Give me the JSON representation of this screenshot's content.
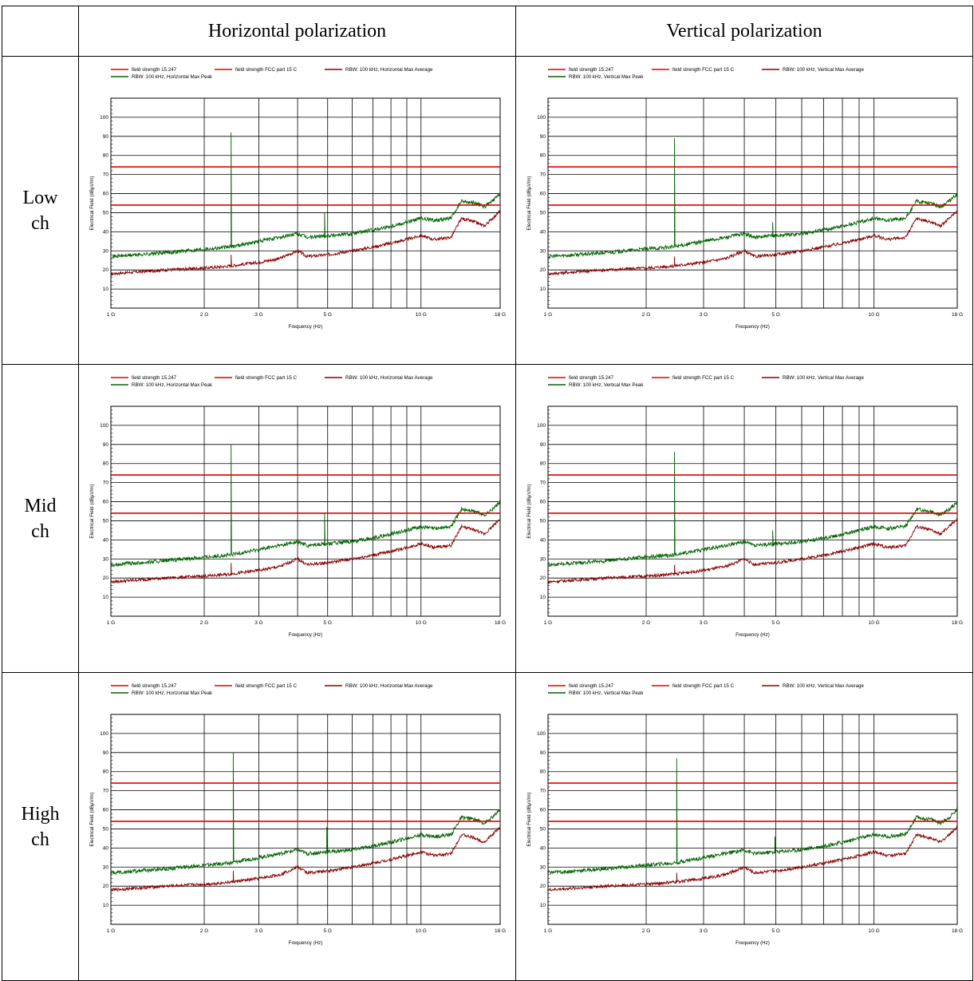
{
  "header": {
    "col1": "Horizontal polarization",
    "col2": "Vertical polarization"
  },
  "rows": [
    {
      "label_line1": "Low",
      "label_line2": "ch"
    },
    {
      "label_line1": "Mid",
      "label_line2": "ch"
    },
    {
      "label_line1": "High",
      "label_line2": "ch"
    }
  ],
  "legend": {
    "limit_1": "field strength 15.247",
    "limit_2": "field strength FCC part 15 C",
    "h_avg": "RBW: 100 kHz, Horizontal Max Average",
    "h_peak": "RBW: 100 kHz, Horizontal Max Peak",
    "v_avg": "RBW: 100 kHz, Vertical Max Average",
    "v_peak": "RBW: 100 kHz, Vertical Max Peak"
  },
  "colors": {
    "limit": "#e00000",
    "average": "#8b0000",
    "peak": "#006400"
  },
  "chart_data": [
    {
      "type": "line",
      "row": "Low ch",
      "polarization": "Horizontal",
      "xlabel": "Frequency (Hz)",
      "ylabel": "Electrical Field (dBµV/m)",
      "x_scale": "log",
      "xlim": [
        1000000000.0,
        18000000000.0
      ],
      "ylim": [
        0,
        110
      ],
      "x_ticks": [
        "1 G",
        "2 G",
        "3 G",
        "5 G",
        "10 G",
        "18 G"
      ],
      "y_ticks": [
        10,
        20,
        30,
        40,
        50,
        60,
        70,
        80,
        90,
        100
      ],
      "series": [
        {
          "name": "field strength 15.247",
          "kind": "limit",
          "x": [
            1000000000.0,
            18000000000.0
          ],
          "y": [
            74,
            74
          ]
        },
        {
          "name": "field strength FCC part 15 C",
          "kind": "limit",
          "x": [
            1000000000.0,
            18000000000.0
          ],
          "y": [
            54,
            54
          ]
        },
        {
          "name": "RBW: 100 kHz, Horizontal Max Average",
          "kind": "average",
          "spike_x": 2440000000.0,
          "spike_y": 28
        },
        {
          "name": "RBW: 100 kHz, Horizontal Max Peak",
          "kind": "peak",
          "spike_x": 2440000000.0,
          "spike_y": 92,
          "harmonic_x": 4880000000.0,
          "harmonic_y": 50
        }
      ]
    },
    {
      "type": "line",
      "row": "Low ch",
      "polarization": "Vertical",
      "xlabel": "Frequency (Hz)",
      "ylabel": "Electrical Field (dBµV/m)",
      "x_scale": "log",
      "xlim": [
        1000000000.0,
        18000000000.0
      ],
      "ylim": [
        0,
        110
      ],
      "x_ticks": [
        "1 G",
        "2 G",
        "3 G",
        "5 G",
        "10 G",
        "18 G"
      ],
      "y_ticks": [
        10,
        20,
        30,
        40,
        50,
        60,
        70,
        80,
        90,
        100
      ],
      "series": [
        {
          "name": "field strength 15.247",
          "kind": "limit",
          "x": [
            1000000000.0,
            18000000000.0
          ],
          "y": [
            74,
            74
          ]
        },
        {
          "name": "field strength FCC part 15 C",
          "kind": "limit",
          "x": [
            1000000000.0,
            18000000000.0
          ],
          "y": [
            54,
            54
          ]
        },
        {
          "name": "RBW: 100 kHz, Vertical Max Average",
          "kind": "average",
          "spike_x": 2440000000.0,
          "spike_y": 27
        },
        {
          "name": "RBW: 100 kHz, Vertical Max Peak",
          "kind": "peak",
          "spike_x": 2440000000.0,
          "spike_y": 89,
          "harmonic_x": 4880000000.0,
          "harmonic_y": 45
        }
      ]
    },
    {
      "type": "line",
      "row": "Mid ch",
      "polarization": "Horizontal",
      "xlabel": "Frequency (Hz)",
      "ylabel": "Electrical Field (dBµV/m)",
      "x_scale": "log",
      "xlim": [
        1000000000.0,
        18000000000.0
      ],
      "ylim": [
        0,
        110
      ],
      "x_ticks": [
        "1 G",
        "2 G",
        "3 G",
        "5 G",
        "10 G",
        "18 G"
      ],
      "y_ticks": [
        10,
        20,
        30,
        40,
        50,
        60,
        70,
        80,
        90,
        100
      ],
      "series": [
        {
          "name": "field strength 15.247",
          "kind": "limit",
          "x": [
            1000000000.0,
            18000000000.0
          ],
          "y": [
            74,
            74
          ]
        },
        {
          "name": "field strength FCC part 15 C",
          "kind": "limit",
          "x": [
            1000000000.0,
            18000000000.0
          ],
          "y": [
            54,
            54
          ]
        },
        {
          "name": "RBW: 100 kHz, Horizontal Max Average",
          "kind": "average",
          "spike_x": 2440000000.0,
          "spike_y": 28
        },
        {
          "name": "RBW: 100 kHz, Horizontal Max Peak",
          "kind": "peak",
          "spike_x": 2440000000.0,
          "spike_y": 90,
          "harmonic_x": 4880000000.0,
          "harmonic_y": 54
        }
      ]
    },
    {
      "type": "line",
      "row": "Mid ch",
      "polarization": "Vertical",
      "xlabel": "Frequency (Hz)",
      "ylabel": "Electrical Field (dBµV/m)",
      "x_scale": "log",
      "xlim": [
        1000000000.0,
        18000000000.0
      ],
      "ylim": [
        0,
        110
      ],
      "x_ticks": [
        "1 G",
        "2 G",
        "3 G",
        "5 G",
        "10 G",
        "18 G"
      ],
      "y_ticks": [
        10,
        20,
        30,
        40,
        50,
        60,
        70,
        80,
        90,
        100
      ],
      "series": [
        {
          "name": "field strength 15.247",
          "kind": "limit",
          "x": [
            1000000000.0,
            18000000000.0
          ],
          "y": [
            74,
            74
          ]
        },
        {
          "name": "field strength FCC part 15 C",
          "kind": "limit",
          "x": [
            1000000000.0,
            18000000000.0
          ],
          "y": [
            54,
            54
          ]
        },
        {
          "name": "RBW: 100 kHz, Vertical Max Average",
          "kind": "average",
          "spike_x": 2440000000.0,
          "spike_y": 27
        },
        {
          "name": "RBW: 100 kHz, Vertical Max Peak",
          "kind": "peak",
          "spike_x": 2440000000.0,
          "spike_y": 86,
          "harmonic_x": 4880000000.0,
          "harmonic_y": 45
        }
      ]
    },
    {
      "type": "line",
      "row": "High ch",
      "polarization": "Horizontal",
      "xlabel": "Frequency (Hz)",
      "ylabel": "Electrical Field (dBµV/m)",
      "x_scale": "log",
      "xlim": [
        1000000000.0,
        18000000000.0
      ],
      "ylim": [
        0,
        110
      ],
      "x_ticks": [
        "1 G",
        "2 G",
        "3 G",
        "5 G",
        "10 G",
        "18 G"
      ],
      "y_ticks": [
        10,
        20,
        30,
        40,
        50,
        60,
        70,
        80,
        90,
        100
      ],
      "series": [
        {
          "name": "field strength 15.247",
          "kind": "limit",
          "x": [
            1000000000.0,
            18000000000.0
          ],
          "y": [
            74,
            74
          ]
        },
        {
          "name": "field strength FCC part 15 C",
          "kind": "limit",
          "x": [
            1000000000.0,
            18000000000.0
          ],
          "y": [
            54,
            54
          ]
        },
        {
          "name": "RBW: 100 kHz, Horizontal Max Average",
          "kind": "average",
          "spike_x": 2480000000.0,
          "spike_y": 28
        },
        {
          "name": "RBW: 100 kHz, Horizontal Max Peak",
          "kind": "peak",
          "spike_x": 2480000000.0,
          "spike_y": 90,
          "harmonic_x": 4960000000.0,
          "harmonic_y": 51
        }
      ]
    },
    {
      "type": "line",
      "row": "High ch",
      "polarization": "Vertical",
      "xlabel": "Frequency (Hz)",
      "ylabel": "Electrical Field (dBµV/m)",
      "x_scale": "log",
      "xlim": [
        1000000000.0,
        18000000000.0
      ],
      "ylim": [
        0,
        110
      ],
      "x_ticks": [
        "1 G",
        "2 G",
        "3 G",
        "5 G",
        "10 G",
        "18 G"
      ],
      "y_ticks": [
        10,
        20,
        30,
        40,
        50,
        60,
        70,
        80,
        90,
        100
      ],
      "series": [
        {
          "name": "field strength 15.247",
          "kind": "limit",
          "x": [
            1000000000.0,
            18000000000.0
          ],
          "y": [
            74,
            74
          ]
        },
        {
          "name": "field strength FCC part 15 C",
          "kind": "limit",
          "x": [
            1000000000.0,
            18000000000.0
          ],
          "y": [
            54,
            54
          ]
        },
        {
          "name": "RBW: 100 kHz, Vertical Max Average",
          "kind": "average",
          "spike_x": 2480000000.0,
          "spike_y": 27
        },
        {
          "name": "RBW: 100 kHz, Vertical Max Peak",
          "kind": "peak",
          "spike_x": 2480000000.0,
          "spike_y": 87,
          "harmonic_x": 4960000000.0,
          "harmonic_y": 46
        }
      ]
    }
  ]
}
